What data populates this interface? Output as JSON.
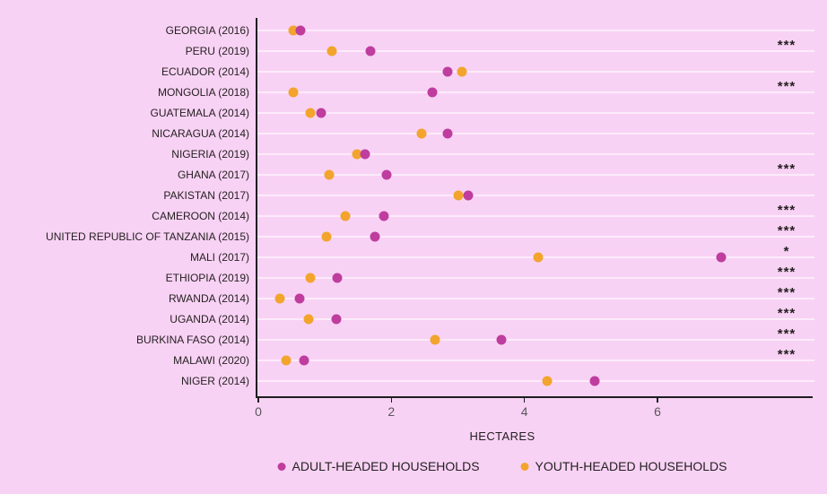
{
  "chart_data": {
    "type": "scatter",
    "variant": "horizontal-dot-plot",
    "title": "",
    "xlabel": "HECTARES",
    "xlim": [
      0,
      8.3
    ],
    "xticks": [
      0,
      2,
      4,
      6
    ],
    "grid": "horizontal-line-per-row",
    "legend_position": "bottom",
    "series": [
      {
        "key": "adult",
        "name": "ADULT-HEADED HOUSEHOLDS",
        "color": "#bf3d9e"
      },
      {
        "key": "youth",
        "name": "YOUTH-HEADED HOUSEHOLDS",
        "color": "#f2a42c"
      }
    ],
    "rows": [
      {
        "label": "GEORGIA (2016)",
        "adult": 0.63,
        "youth": 0.53,
        "significance": ""
      },
      {
        "label": "PERU (2019)",
        "adult": 1.68,
        "youth": 1.1,
        "significance": "***"
      },
      {
        "label": "ECUADOR (2014)",
        "adult": 2.84,
        "youth": 3.06,
        "significance": ""
      },
      {
        "label": "MONGOLIA (2018)",
        "adult": 2.62,
        "youth": 0.53,
        "significance": "***"
      },
      {
        "label": "GUATEMALA (2014)",
        "adult": 0.95,
        "youth": 0.78,
        "significance": ""
      },
      {
        "label": "NICARAGUA (2014)",
        "adult": 2.84,
        "youth": 2.45,
        "significance": ""
      },
      {
        "label": "NIGERIA (2019)",
        "adult": 1.61,
        "youth": 1.48,
        "significance": ""
      },
      {
        "label": "GHANA (2017)",
        "adult": 1.93,
        "youth": 1.07,
        "significance": "***"
      },
      {
        "label": "PAKISTAN (2017)",
        "adult": 3.16,
        "youth": 3.01,
        "significance": ""
      },
      {
        "label": "CAMEROON (2014)",
        "adult": 1.89,
        "youth": 1.31,
        "significance": "***"
      },
      {
        "label": "UNITED REPUBLIC OF TANZANIA (2015)",
        "adult": 1.75,
        "youth": 1.03,
        "significance": "***"
      },
      {
        "label": "MALI (2017)",
        "adult": 6.96,
        "youth": 4.2,
        "significance": "*"
      },
      {
        "label": "ETHIOPIA (2019)",
        "adult": 1.18,
        "youth": 0.78,
        "significance": "***"
      },
      {
        "label": "RWANDA (2014)",
        "adult": 0.62,
        "youth": 0.33,
        "significance": "***"
      },
      {
        "label": "UGANDA (2014)",
        "adult": 1.17,
        "youth": 0.75,
        "significance": "***"
      },
      {
        "label": "BURKINA FASO (2014)",
        "adult": 3.65,
        "youth": 2.65,
        "significance": "***"
      },
      {
        "label": "MALAWI (2020)",
        "adult": 0.69,
        "youth": 0.42,
        "significance": "***"
      },
      {
        "label": "NIGER (2014)",
        "adult": 5.06,
        "youth": 4.34,
        "significance": ""
      }
    ]
  },
  "legend": {
    "adult_label": "ADULT-HEADED HOUSEHOLDS",
    "youth_label": "YOUTH-HEADED HOUSEHOLDS"
  },
  "colors": {
    "background": "#f8d2f4",
    "adult": "#bf3d9e",
    "youth": "#f2a42c",
    "gridline": "#fcebfa",
    "axis_line": "#1d1d1f",
    "label_text": "#231f20",
    "tick_text": "#57575b"
  }
}
